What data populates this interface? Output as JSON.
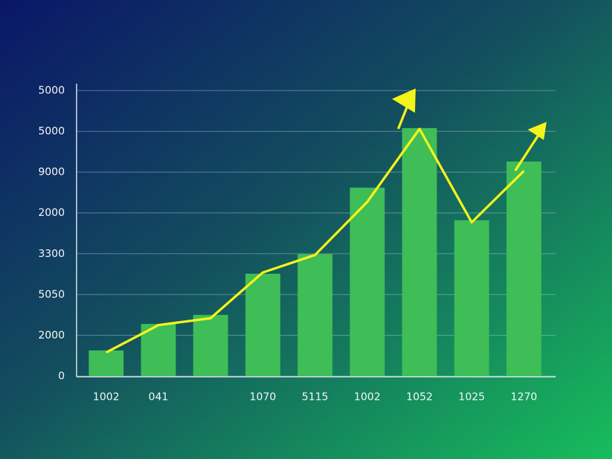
{
  "chart_data": {
    "type": "bar",
    "categories": [
      "1002",
      "041",
      null,
      "1070",
      "5115",
      "1002",
      "1052",
      "1025",
      "1270"
    ],
    "series": [
      {
        "type": "bar",
        "color": "#3fbd57",
        "values": [
          0.63,
          1.28,
          1.5,
          2.51,
          2.99,
          4.62,
          6.08,
          3.82,
          5.26
        ]
      },
      {
        "type": "line",
        "color": "#f4f41a",
        "values": [
          0.58,
          1.25,
          1.42,
          2.54,
          2.97,
          4.27,
          6.06,
          3.77,
          5.03
        ]
      }
    ],
    "ylim": [
      0,
      7
    ],
    "yticks": [
      0,
      {
        "value": 1,
        "label": "2000"
      },
      {
        "value": 2,
        "label": "5050"
      },
      {
        "value": 3,
        "label": "3300"
      },
      {
        "value": 4,
        "label": "2000"
      },
      {
        "value": 5,
        "label": "9000"
      },
      {
        "value": 6,
        "label": "5000"
      },
      {
        "value": 7,
        "label": "5000"
      }
    ],
    "grid": true
  }
}
